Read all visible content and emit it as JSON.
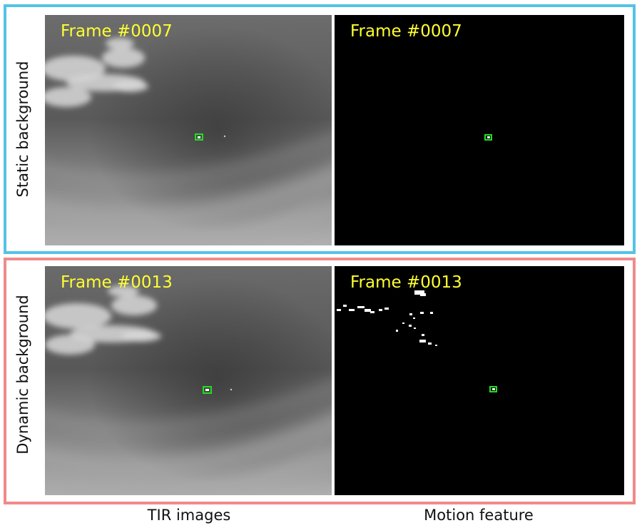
{
  "rows": [
    {
      "label": "Static  background",
      "frame_label": "Frame #0007",
      "border_color": "#55c2e6"
    },
    {
      "label": "Dynamic background",
      "frame_label": "Frame #0013",
      "border_color": "#f08a8a"
    }
  ],
  "columns": [
    {
      "caption": "TIR images"
    },
    {
      "caption": "Motion feature"
    }
  ],
  "colors": {
    "detection_box": "#22dd22",
    "frame_label_text": "#ffff33",
    "motion_background": "#000000"
  }
}
